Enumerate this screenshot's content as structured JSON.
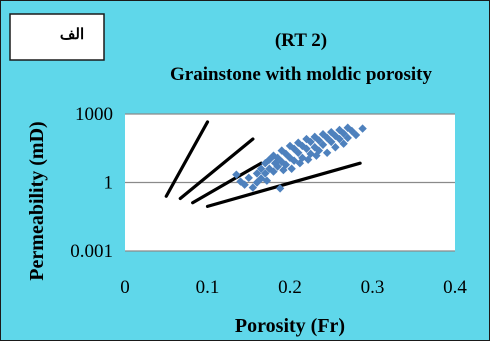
{
  "panel_label": "الف",
  "chart_data": {
    "type": "scatter",
    "title": "(RT 2)",
    "subtitle": "Grainstone with moldic porosity",
    "xlabel": "Porosity (Fr)",
    "ylabel": "Permeability (mD)",
    "x_ticks": [
      "0",
      "0.1",
      "0.2",
      "0.3",
      "0.4"
    ],
    "x_tick_values": [
      0,
      0.1,
      0.2,
      0.3,
      0.4
    ],
    "y_ticks": [
      "0.001",
      "1",
      "1000"
    ],
    "y_tick_values": [
      0.001,
      1,
      1000
    ],
    "xlim": [
      0,
      0.4
    ],
    "ylim": [
      0.001,
      1000
    ],
    "y_scale": "log",
    "grid": "horizontal",
    "legend": "none",
    "colors": {
      "background": "#5fd7ea",
      "plot_area": "#ffffff",
      "points": "#4e81bd",
      "lines": "#000000",
      "gridlines": "#8a8a8a"
    },
    "series": [
      {
        "marker": "diamond",
        "points": [
          [
            0.135,
            2.2
          ],
          [
            0.14,
            1.1
          ],
          [
            0.145,
            0.8
          ],
          [
            0.15,
            1.6
          ],
          [
            0.155,
            0.6
          ],
          [
            0.16,
            2.5
          ],
          [
            0.16,
            1.0
          ],
          [
            0.165,
            4.0
          ],
          [
            0.165,
            1.5
          ],
          [
            0.17,
            7.0
          ],
          [
            0.17,
            2.5
          ],
          [
            0.172,
            1.2
          ],
          [
            0.175,
            10.0
          ],
          [
            0.175,
            4.0
          ],
          [
            0.18,
            15.0
          ],
          [
            0.18,
            3.0
          ],
          [
            0.182,
            7.0
          ],
          [
            0.185,
            12.0
          ],
          [
            0.185,
            5.0
          ],
          [
            0.188,
            0.55
          ],
          [
            0.19,
            25.0
          ],
          [
            0.19,
            8.0
          ],
          [
            0.192,
            3.5
          ],
          [
            0.195,
            18.0
          ],
          [
            0.195,
            6.0
          ],
          [
            0.2,
            40.0
          ],
          [
            0.2,
            12.0
          ],
          [
            0.202,
            4.0
          ],
          [
            0.205,
            30.0
          ],
          [
            0.205,
            9.0
          ],
          [
            0.21,
            55.0
          ],
          [
            0.21,
            20.0
          ],
          [
            0.212,
            7.0
          ],
          [
            0.215,
            40.0
          ],
          [
            0.215,
            12.0
          ],
          [
            0.22,
            80.0
          ],
          [
            0.22,
            30.0
          ],
          [
            0.222,
            10.0
          ],
          [
            0.225,
            60.0
          ],
          [
            0.225,
            18.0
          ],
          [
            0.23,
            100.0
          ],
          [
            0.23,
            35.0
          ],
          [
            0.232,
            15.0
          ],
          [
            0.235,
            70.0
          ],
          [
            0.235,
            25.0
          ],
          [
            0.24,
            130.0
          ],
          [
            0.24,
            45.0
          ],
          [
            0.245,
            90.0
          ],
          [
            0.245,
            20.0
          ],
          [
            0.25,
            160.0
          ],
          [
            0.25,
            60.0
          ],
          [
            0.255,
            110.0
          ],
          [
            0.255,
            35.0
          ],
          [
            0.26,
            200.0
          ],
          [
            0.26,
            80.0
          ],
          [
            0.265,
            140.0
          ],
          [
            0.265,
            50.0
          ],
          [
            0.27,
            250.0
          ],
          [
            0.27,
            90.0
          ],
          [
            0.275,
            180.0
          ],
          [
            0.28,
            120.0
          ],
          [
            0.288,
            230.0
          ]
        ]
      }
    ],
    "reference_lines": [
      [
        [
          0.05,
          0.25
        ],
        [
          0.1,
          450
        ]
      ],
      [
        [
          0.067,
          0.2
        ],
        [
          0.155,
          80
        ]
      ],
      [
        [
          0.082,
          0.13
        ],
        [
          0.165,
          7
        ]
      ],
      [
        [
          0.1,
          0.09
        ],
        [
          0.285,
          7
        ]
      ]
    ]
  }
}
